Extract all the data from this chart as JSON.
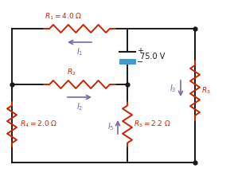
{
  "bg_color": "#ffffff",
  "wire_color": "#1a1a1a",
  "resistor_color": "#cc2200",
  "battery_color": "#4499cc",
  "current_arrow_color": "#7766aa",
  "node_color": "#000000",
  "label_color": "#cc2200",
  "text_color": "#1a1a1a",
  "figsize": [
    2.89,
    2.36
  ],
  "dpi": 100
}
